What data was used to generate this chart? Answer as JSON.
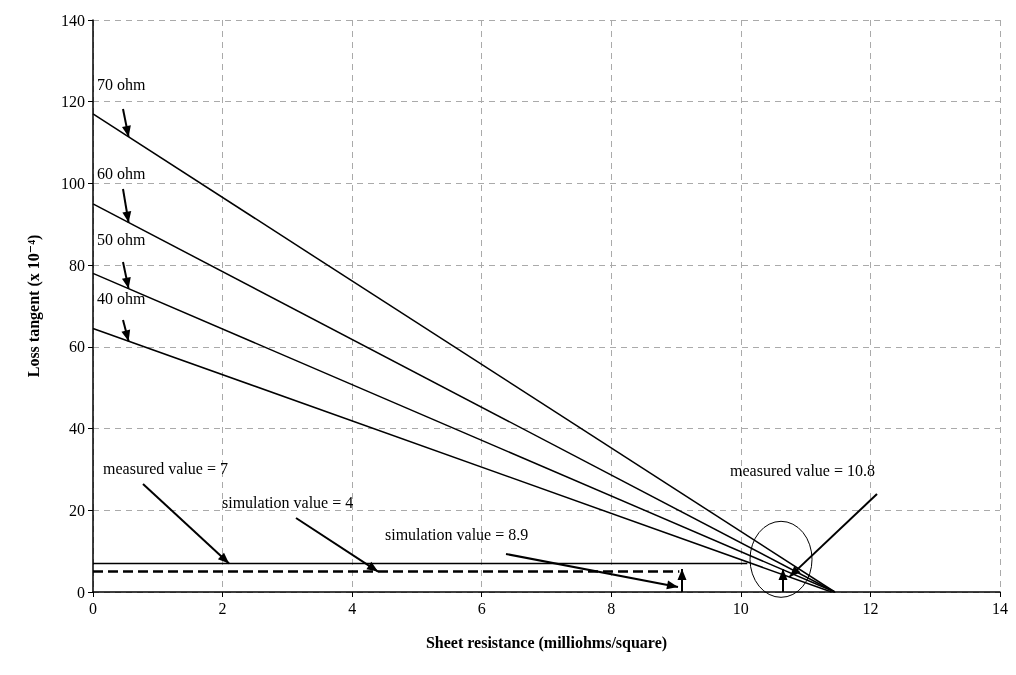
{
  "chart_data": {
    "type": "line",
    "xlabel": "Sheet resistance (milliohms/square)",
    "ylabel": "Loss tangent (x 10⁻⁴)",
    "xlim": [
      0,
      14
    ],
    "xticks": [
      0,
      2,
      4,
      6,
      8,
      10,
      12,
      14
    ],
    "ylim": [
      0,
      140
    ],
    "yticks": [
      0,
      20,
      40,
      60,
      80,
      100,
      120,
      140
    ],
    "grid": true,
    "marker": "none",
    "legend": "left",
    "series": [
      {
        "name": "70 ohm",
        "color": "#000000",
        "x": [
          0,
          11.45
        ],
        "values": [
          117,
          0
        ],
        "line_style": "solid"
      },
      {
        "name": "60 ohm",
        "color": "#000000",
        "x": [
          0,
          11.45
        ],
        "values": [
          95,
          0
        ],
        "line_style": "solid"
      },
      {
        "name": "50 ohm",
        "color": "#000000",
        "x": [
          0,
          11.45
        ],
        "values": [
          78,
          0
        ],
        "line_style": "solid"
      },
      {
        "name": "40 ohm",
        "color": "#000000",
        "x": [
          0,
          11.4
        ],
        "values": [
          64.5,
          0
        ],
        "line_style": "solid"
      },
      {
        "color": "#000000",
        "x": [
          0,
          10.1
        ],
        "values": [
          7,
          7
        ],
        "line_style": "solid"
      },
      {
        "color": "#000000",
        "x": [
          0,
          9.05
        ],
        "values": [
          5,
          5
        ],
        "line_style": "dashed"
      }
    ],
    "annotations": [
      {
        "text": "measured value = 7",
        "x": 2.1,
        "y": 7
      },
      {
        "text": "simulation value = 4",
        "x": 4.4,
        "y": 5
      },
      "simulation value = 8.9",
      {
        "text": "measured value = 10.8",
        "x": 10.75,
        "y": 3.7
      }
    ]
  }
}
